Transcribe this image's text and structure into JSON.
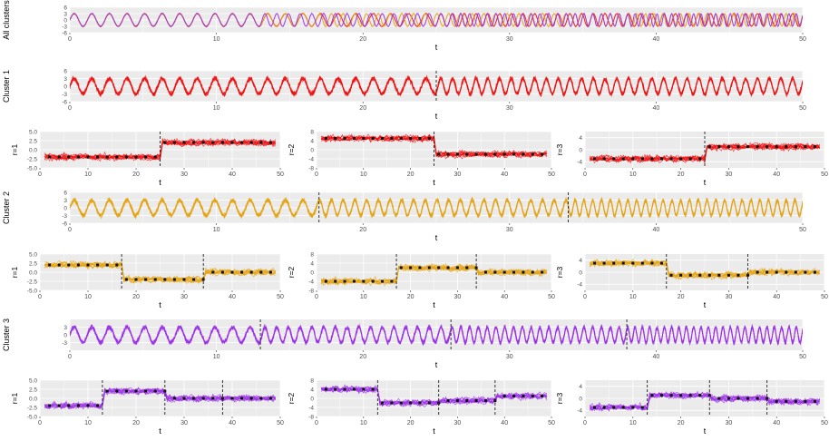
{
  "colors": {
    "panel_bg": "#ebebeb",
    "grid": "#ffffff",
    "tick_text": "#4d4d4d",
    "cluster1": "#ee1111",
    "cluster2": "#e5a30f",
    "cluster3": "#9b30e8",
    "all_mix": [
      "#e64e8f",
      "#efc24f",
      "#c78bd9"
    ],
    "change_line": "#222222",
    "mean_marker": "#111111"
  },
  "chart_data": [
    {
      "id": "all",
      "type": "line",
      "title": "",
      "xlabel": "t",
      "ylabel": "All clusters",
      "xlim": [
        0,
        50
      ],
      "ylim": [
        -6,
        6
      ],
      "xticks": [
        0,
        10,
        20,
        30,
        40,
        50
      ],
      "yticks": [
        6,
        3,
        0,
        -3,
        -6
      ],
      "series": [
        {
          "color": "cluster1",
          "amplitude": 3,
          "offset": 0,
          "segments": [
            {
              "from": 0,
              "to": 25,
              "period": 1.2
            },
            {
              "from": 25,
              "to": 50,
              "period": 0.8
            }
          ]
        },
        {
          "color": "cluster2",
          "amplitude": 3,
          "offset": 0,
          "segments": [
            {
              "from": 0,
              "to": 17,
              "period": 1.2
            },
            {
              "from": 17,
              "to": 34,
              "period": 0.8
            },
            {
              "from": 34,
              "to": 50,
              "period": 0.6
            }
          ]
        },
        {
          "color": "cluster3",
          "amplitude": 3,
          "offset": 0,
          "segments": [
            {
              "from": 0,
              "to": 13,
              "period": 1.2
            },
            {
              "from": 13,
              "to": 26,
              "period": 0.8
            },
            {
              "from": 26,
              "to": 38,
              "period": 0.6
            },
            {
              "from": 38,
              "to": 50,
              "period": 0.5
            }
          ]
        }
      ]
    },
    {
      "id": "c1",
      "type": "line",
      "title": "",
      "xlabel": "t",
      "ylabel": "Cluster 1",
      "xlim": [
        0,
        50
      ],
      "ylim": [
        -6,
        6
      ],
      "xticks": [
        0,
        10,
        20,
        30,
        40,
        50
      ],
      "yticks": [
        6,
        3,
        0,
        -3,
        -6
      ],
      "color": "cluster1",
      "amplitude": 3,
      "change_points": [
        25
      ],
      "segments": [
        {
          "from": 0,
          "to": 25,
          "period": 1.2
        },
        {
          "from": 25,
          "to": 50,
          "period": 0.8
        }
      ]
    },
    {
      "id": "c1r1",
      "type": "scatter",
      "xlabel": "t",
      "ylabel": "r=1",
      "xlim": [
        0,
        50
      ],
      "ylim": [
        -5,
        5
      ],
      "xticks": [
        0,
        10,
        20,
        30,
        40,
        50
      ],
      "yticks": [
        5.0,
        2.5,
        0.0,
        -2.5,
        -5.0
      ],
      "color": "cluster1",
      "change_points": [
        25
      ],
      "levels": [
        {
          "from": 0,
          "to": 25,
          "mean": -2
        },
        {
          "from": 25,
          "to": 50,
          "mean": 2
        }
      ]
    },
    {
      "id": "c1r2",
      "type": "scatter",
      "xlabel": "t",
      "ylabel": "r=2",
      "xlim": [
        0,
        50
      ],
      "ylim": [
        -8,
        8
      ],
      "xticks": [
        0,
        10,
        20,
        30,
        40,
        50
      ],
      "yticks": [
        8,
        4,
        0,
        -4,
        -8
      ],
      "color": "cluster1",
      "change_points": [
        25
      ],
      "levels": [
        {
          "from": 0,
          "to": 25,
          "mean": 5
        },
        {
          "from": 25,
          "to": 50,
          "mean": -2
        }
      ]
    },
    {
      "id": "c1r3",
      "type": "scatter",
      "xlabel": "t",
      "ylabel": "r=3",
      "xlim": [
        0,
        50
      ],
      "ylim": [
        -6,
        6
      ],
      "xticks": [
        0,
        10,
        20,
        30,
        40,
        50
      ],
      "yticks": [
        4,
        0,
        -4
      ],
      "color": "cluster1",
      "change_points": [
        25
      ],
      "levels": [
        {
          "from": 0,
          "to": 25,
          "mean": -3
        },
        {
          "from": 25,
          "to": 50,
          "mean": 1
        }
      ]
    },
    {
      "id": "c2",
      "type": "line",
      "title": "",
      "xlabel": "t",
      "ylabel": "Cluster 2",
      "xlim": [
        0,
        50
      ],
      "ylim": [
        -6,
        6
      ],
      "xticks": [
        0,
        10,
        20,
        30,
        40,
        50
      ],
      "yticks": [
        6,
        3,
        0,
        -3,
        -6
      ],
      "color": "cluster2",
      "amplitude": 3,
      "change_points": [
        17,
        34
      ],
      "segments": [
        {
          "from": 0,
          "to": 17,
          "period": 1.2
        },
        {
          "from": 17,
          "to": 34,
          "period": 0.8
        },
        {
          "from": 34,
          "to": 50,
          "period": 0.6
        }
      ]
    },
    {
      "id": "c2r1",
      "type": "scatter",
      "xlabel": "t",
      "ylabel": "r=1",
      "xlim": [
        0,
        50
      ],
      "ylim": [
        -5,
        5
      ],
      "xticks": [
        0,
        10,
        20,
        30,
        40,
        50
      ],
      "yticks": [
        5.0,
        2.5,
        0.0,
        -2.5,
        -5.0
      ],
      "color": "cluster2",
      "change_points": [
        17,
        34
      ],
      "levels": [
        {
          "from": 0,
          "to": 17,
          "mean": 2
        },
        {
          "from": 17,
          "to": 34,
          "mean": -2
        },
        {
          "from": 34,
          "to": 50,
          "mean": 0
        }
      ]
    },
    {
      "id": "c2r2",
      "type": "scatter",
      "xlabel": "t",
      "ylabel": "r=2",
      "xlim": [
        0,
        50
      ],
      "ylim": [
        -8,
        8
      ],
      "xticks": [
        0,
        10,
        20,
        30,
        40,
        50
      ],
      "yticks": [
        8,
        4,
        0,
        -4,
        -8
      ],
      "color": "cluster2",
      "change_points": [
        17,
        34
      ],
      "levels": [
        {
          "from": 0,
          "to": 17,
          "mean": -4
        },
        {
          "from": 17,
          "to": 34,
          "mean": 2
        },
        {
          "from": 34,
          "to": 50,
          "mean": 0
        }
      ]
    },
    {
      "id": "c2r3",
      "type": "scatter",
      "xlabel": "t",
      "ylabel": "r=3",
      "xlim": [
        0,
        50
      ],
      "ylim": [
        -6,
        6
      ],
      "xticks": [
        0,
        10,
        20,
        30,
        40,
        50
      ],
      "yticks": [
        4,
        0,
        -4
      ],
      "color": "cluster2",
      "change_points": [
        17,
        34
      ],
      "levels": [
        {
          "from": 0,
          "to": 17,
          "mean": 3
        },
        {
          "from": 17,
          "to": 34,
          "mean": -1
        },
        {
          "from": 34,
          "to": 50,
          "mean": 0
        }
      ]
    },
    {
      "id": "c3",
      "type": "line",
      "title": "",
      "xlabel": "t",
      "ylabel": "Cluster 3",
      "xlim": [
        0,
        50
      ],
      "ylim": [
        -6,
        6
      ],
      "xticks": [
        0,
        10,
        20,
        30,
        40,
        50
      ],
      "yticks": [
        3,
        0,
        -3
      ],
      "color": "cluster3",
      "amplitude": 3,
      "change_points": [
        13,
        26,
        38
      ],
      "segments": [
        {
          "from": 0,
          "to": 13,
          "period": 1.2
        },
        {
          "from": 13,
          "to": 26,
          "period": 0.8
        },
        {
          "from": 26,
          "to": 38,
          "period": 0.6
        },
        {
          "from": 38,
          "to": 50,
          "period": 0.5
        }
      ]
    },
    {
      "id": "c3r1",
      "type": "scatter",
      "xlabel": "t",
      "ylabel": "r=1",
      "xlim": [
        0,
        50
      ],
      "ylim": [
        -5,
        5
      ],
      "xticks": [
        0,
        10,
        20,
        30,
        40,
        50
      ],
      "yticks": [
        5.0,
        2.5,
        0.0,
        -2.5,
        -5.0
      ],
      "color": "cluster3",
      "change_points": [
        13,
        26,
        38
      ],
      "levels": [
        {
          "from": 0,
          "to": 13,
          "mean": -2
        },
        {
          "from": 13,
          "to": 26,
          "mean": 2
        },
        {
          "from": 26,
          "to": 38,
          "mean": 0
        },
        {
          "from": 38,
          "to": 50,
          "mean": 0
        }
      ]
    },
    {
      "id": "c3r2",
      "type": "scatter",
      "xlabel": "t",
      "ylabel": "r=2",
      "xlim": [
        0,
        50
      ],
      "ylim": [
        -8,
        8
      ],
      "xticks": [
        0,
        10,
        20,
        30,
        40,
        50
      ],
      "yticks": [
        8,
        4,
        0,
        -4,
        -8
      ],
      "color": "cluster3",
      "change_points": [
        13,
        26,
        38
      ],
      "levels": [
        {
          "from": 0,
          "to": 13,
          "mean": 4
        },
        {
          "from": 13,
          "to": 26,
          "mean": -2
        },
        {
          "from": 26,
          "to": 38,
          "mean": -1
        },
        {
          "from": 38,
          "to": 50,
          "mean": 1
        }
      ]
    },
    {
      "id": "c3r3",
      "type": "scatter",
      "xlabel": "t",
      "ylabel": "r=3",
      "xlim": [
        0,
        50
      ],
      "ylim": [
        -6,
        6
      ],
      "xticks": [
        0,
        10,
        20,
        30,
        40,
        50
      ],
      "yticks": [
        4,
        0,
        -4
      ],
      "color": "cluster3",
      "change_points": [
        13,
        26,
        38
      ],
      "levels": [
        {
          "from": 0,
          "to": 13,
          "mean": -3
        },
        {
          "from": 13,
          "to": 26,
          "mean": 1
        },
        {
          "from": 26,
          "to": 38,
          "mean": 0
        },
        {
          "from": 38,
          "to": 50,
          "mean": -1
        }
      ]
    }
  ]
}
